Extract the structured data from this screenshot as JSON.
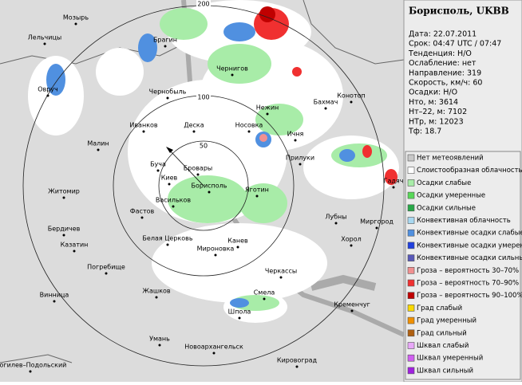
{
  "header": {
    "title": "Борисполь, UKBB"
  },
  "info": [
    "Дата: 22.07.2011",
    "Срок: 04:47 UTC / 07:47",
    "Тенденция: Н/О",
    "Ослабление: нет",
    "Направление: 319",
    "Скорость, км/ч: 60",
    "Осадки: Н/О",
    "Hто, м: 3614",
    "Hт–22, м: 7102",
    "HТр, м: 12023",
    "Tф: 18.7"
  ],
  "rings": [
    "200",
    "100",
    "50"
  ],
  "legend": [
    {
      "label": "Нет метеоявлений",
      "color": "#c8c8c8"
    },
    {
      "label": "Слоистообразная облачность",
      "color": "#ffffff"
    },
    {
      "label": "Осадки слабые",
      "color": "#a8eca8"
    },
    {
      "label": "Осадки умеренные",
      "color": "#58d858"
    },
    {
      "label": "Осадки сильные",
      "color": "#28a848"
    },
    {
      "label": "Конвективная облачность",
      "color": "#a8d8f0"
    },
    {
      "label": "Конвективные осадки слабые",
      "color": "#5090e0"
    },
    {
      "label": "Конвективные осадки умерен.",
      "color": "#2040e0"
    },
    {
      "label": "Конвективные осадки сильные",
      "color": "#5858b8"
    },
    {
      "label": "Гроза – вероятность 30–70%",
      "color": "#f09090"
    },
    {
      "label": "Гроза – вероятность 70–90%",
      "color": "#f03030"
    },
    {
      "label": "Гроза – вероятность 90–100%",
      "color": "#c00000"
    },
    {
      "label": "Град слабый",
      "color": "#f8d800"
    },
    {
      "label": "Град умеренный",
      "color": "#f09000"
    },
    {
      "label": "Град сильный",
      "color": "#b06010"
    },
    {
      "label": "Шквал слабый",
      "color": "#e8a8f8"
    },
    {
      "label": "Шквал умеренный",
      "color": "#d060f0"
    },
    {
      "label": "Шквал сильный",
      "color": "#a020e0"
    }
  ],
  "cities": [
    "Мозырь",
    "Лельчицы",
    "Брагин",
    "Овруч",
    "Чернигов",
    "Чернобыль",
    "Нежин",
    "Бахмач",
    "Конотоп",
    "Иванков",
    "Деска",
    "Носовка",
    "Ичня",
    "Малин",
    "Прилуки",
    "Буча",
    "Бровары",
    "Киев",
    "Борисполь",
    "Гадяч",
    "Житомир",
    "Васильков",
    "Яготин",
    "Фастов",
    "Лубны",
    "Миргород",
    "Бердичев",
    "Белая Церковь",
    "Канев",
    "Хорол",
    "Казатин",
    "Мироновка",
    "Погребище",
    "Черкассы",
    "Винница",
    "Смела",
    "Жашков",
    "Кременчуг",
    "Шпола",
    "Умань",
    "Новоархангельск",
    "Кировоград",
    "Могилев–Подольский"
  ]
}
